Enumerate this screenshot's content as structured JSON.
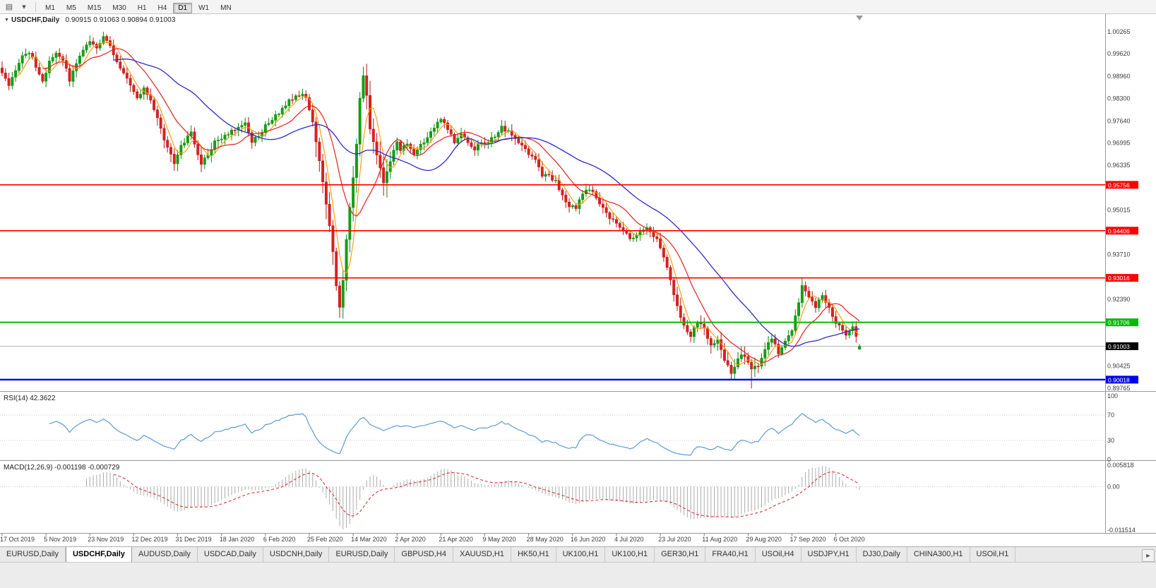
{
  "toolbar": {
    "timeframes": [
      "M1",
      "M5",
      "M15",
      "M30",
      "H1",
      "H4",
      "D1",
      "W1",
      "MN"
    ],
    "active_timeframe": "D1",
    "icons": {
      "chart_windows": "▤",
      "dropdown": "▾"
    }
  },
  "chart": {
    "title": "USDCHF,Daily",
    "ohlc_text": "0.90915 0.91063 0.90894 0.91003",
    "collapse_icon": "▼"
  },
  "chart_data": {
    "type": "candlestick",
    "symbol": "USDCHF",
    "timeframe": "Daily",
    "current_bar": {
      "open": 0.90915,
      "high": 0.91063,
      "low": 0.90894,
      "close": 0.91003
    },
    "current_price_label": "0.91003",
    "price_axis": {
      "min": 0.89765,
      "max": 1.00265,
      "labels": [
        "1.00265",
        "0.99620",
        "0.98960",
        "0.98300",
        "0.97640",
        "0.96995",
        "0.96335",
        "0.95015",
        "0.93710",
        "0.92390",
        "0.90425",
        "0.89765"
      ]
    },
    "hlines": [
      {
        "value": 0.95756,
        "label": "0.95756",
        "color": "#ff0000",
        "width": 1.6
      },
      {
        "value": 0.94406,
        "label": "0.94406",
        "color": "#ff0000",
        "width": 1.6
      },
      {
        "value": 0.93016,
        "label": "0.93016",
        "color": "#ff0000",
        "width": 1.6
      },
      {
        "value": 0.91706,
        "label": "0.91706",
        "color": "#00bb00",
        "width": 2
      },
      {
        "value": 0.90018,
        "label": "0.90018",
        "color": "#0000ee",
        "width": 2.4
      }
    ],
    "x_labels": [
      "17 Oct 2019",
      "5 Nov 2019",
      "23 Nov 2019",
      "12 Dec 2019",
      "31 Dec 2019",
      "18 Jan 2020",
      "6 Feb 2020",
      "25 Feb 2020",
      "14 Mar 2020",
      "2 Apr 2020",
      "21 Apr 2020",
      "9 May 2020",
      "28 May 2020",
      "16 Jun 2020",
      "4 Jul 2020",
      "23 Jul 2020",
      "11 Aug 2020",
      "29 Aug 2020",
      "17 Sep 2020",
      "6 Oct 2020"
    ],
    "candles_per_label": 13,
    "total_candles": 255,
    "close_anchors": [
      [
        0,
        0.99
      ],
      [
        2,
        0.9868
      ],
      [
        4,
        0.9915
      ],
      [
        6,
        0.9952
      ],
      [
        8,
        0.9968
      ],
      [
        10,
        0.9925
      ],
      [
        12,
        0.9878
      ],
      [
        14,
        0.9942
      ],
      [
        16,
        0.9968
      ],
      [
        18,
        0.9945
      ],
      [
        20,
        0.9882
      ],
      [
        22,
        0.9932
      ],
      [
        24,
        0.9975
      ],
      [
        26,
        1.0
      ],
      [
        28,
        0.9978
      ],
      [
        30,
        1.0008
      ],
      [
        32,
        0.9985
      ],
      [
        34,
        0.9942
      ],
      [
        36,
        0.9905
      ],
      [
        38,
        0.9868
      ],
      [
        40,
        0.9832
      ],
      [
        42,
        0.9858
      ],
      [
        44,
        0.9828
      ],
      [
        46,
        0.9768
      ],
      [
        48,
        0.9708
      ],
      [
        50,
        0.9662
      ],
      [
        51,
        0.9635
      ],
      [
        53,
        0.9692
      ],
      [
        56,
        0.9728
      ],
      [
        59,
        0.9633
      ],
      [
        61,
        0.9668
      ],
      [
        63,
        0.97
      ],
      [
        66,
        0.9718
      ],
      [
        69,
        0.9742
      ],
      [
        72,
        0.9758
      ],
      [
        74,
        0.9705
      ],
      [
        76,
        0.9722
      ],
      [
        78,
        0.9748
      ],
      [
        81,
        0.9778
      ],
      [
        84,
        0.9812
      ],
      [
        87,
        0.984
      ],
      [
        90,
        0.9838
      ],
      [
        92,
        0.976
      ],
      [
        94,
        0.965
      ],
      [
        96,
        0.952
      ],
      [
        98,
        0.938
      ],
      [
        99,
        0.928
      ],
      [
        100,
        0.921
      ],
      [
        101,
        0.929
      ],
      [
        102,
        0.942
      ],
      [
        104,
        0.96
      ],
      [
        105,
        0.97
      ],
      [
        106,
        0.983
      ],
      [
        107,
        0.9895
      ],
      [
        108,
        0.9835
      ],
      [
        109,
        0.9745
      ],
      [
        111,
        0.966
      ],
      [
        113,
        0.9585
      ],
      [
        115,
        0.9645
      ],
      [
        117,
        0.9705
      ],
      [
        118,
        0.9672
      ],
      [
        120,
        0.97
      ],
      [
        122,
        0.9668
      ],
      [
        124,
        0.969
      ],
      [
        126,
        0.972
      ],
      [
        128,
        0.9745
      ],
      [
        130,
        0.9768
      ],
      [
        132,
        0.9738
      ],
      [
        134,
        0.97
      ],
      [
        136,
        0.9725
      ],
      [
        138,
        0.97
      ],
      [
        140,
        0.9682
      ],
      [
        142,
        0.9705
      ],
      [
        144,
        0.9702
      ],
      [
        146,
        0.9722
      ],
      [
        148,
        0.9745
      ],
      [
        150,
        0.973
      ],
      [
        152,
        0.9708
      ],
      [
        154,
        0.9688
      ],
      [
        156,
        0.9665
      ],
      [
        158,
        0.9648
      ],
      [
        160,
        0.9605
      ],
      [
        162,
        0.96
      ],
      [
        164,
        0.9588
      ],
      [
        166,
        0.9542
      ],
      [
        168,
        0.9515
      ],
      [
        170,
        0.9505
      ],
      [
        172,
        0.9548
      ],
      [
        174,
        0.9562
      ],
      [
        176,
        0.954
      ],
      [
        178,
        0.9508
      ],
      [
        180,
        0.9478
      ],
      [
        182,
        0.946
      ],
      [
        184,
        0.944
      ],
      [
        186,
        0.9418
      ],
      [
        188,
        0.9428
      ],
      [
        190,
        0.9448
      ],
      [
        192,
        0.944
      ],
      [
        194,
        0.9412
      ],
      [
        196,
        0.9365
      ],
      [
        198,
        0.9295
      ],
      [
        200,
        0.9215
      ],
      [
        202,
        0.916
      ],
      [
        204,
        0.913
      ],
      [
        206,
        0.9175
      ],
      [
        208,
        0.915
      ],
      [
        210,
        0.9105
      ],
      [
        212,
        0.9118
      ],
      [
        214,
        0.906
      ],
      [
        216,
        0.902
      ],
      [
        218,
        0.9068
      ],
      [
        220,
        0.9075
      ],
      [
        222,
        0.903
      ],
      [
        224,
        0.9045
      ],
      [
        226,
        0.909
      ],
      [
        228,
        0.9125
      ],
      [
        230,
        0.908
      ],
      [
        232,
        0.911
      ],
      [
        234,
        0.915
      ],
      [
        236,
        0.923
      ],
      [
        237,
        0.928
      ],
      [
        239,
        0.924
      ],
      [
        241,
        0.9218
      ],
      [
        243,
        0.9248
      ],
      [
        245,
        0.921
      ],
      [
        247,
        0.9172
      ],
      [
        248,
        0.916
      ],
      [
        250,
        0.913
      ],
      [
        252,
        0.9158
      ],
      [
        254,
        0.91003
      ]
    ],
    "wick_spikes": [
      {
        "i": 30,
        "h": 1.00265
      },
      {
        "i": 51,
        "l": 0.9617
      },
      {
        "i": 59,
        "l": 0.9613
      },
      {
        "i": 100,
        "l": 0.9184
      },
      {
        "i": 107,
        "h": 0.992
      },
      {
        "i": 113,
        "l": 0.956
      },
      {
        "i": 222,
        "l": 0.8976
      },
      {
        "i": 237,
        "h": 0.9301
      }
    ],
    "ma_periods": {
      "fast": 5,
      "mid": 13,
      "slow": 34
    },
    "colors": {
      "bull": "#0fa30f",
      "bull_stroke": "#0b880b",
      "bear": "#dd2020",
      "bear_stroke": "#b51515",
      "ma_fast": "#ff9900",
      "ma_mid": "#e02020",
      "ma_slow": "#2d2dc9",
      "rsi": "#5b9bd5",
      "macd_hist": "#ababab",
      "macd_signal": "#d43333",
      "current_price_line": "#b8b8b8",
      "current_price_box": "#000000"
    },
    "indicators": {
      "rsi": {
        "label": "RSI(14) 42.3622",
        "period": 14,
        "value": "42.3622",
        "levels": [
          "100",
          "70",
          "30",
          "0"
        ]
      },
      "macd": {
        "label": "MACD(12,26,9) -0.001198 -0.000729",
        "fast": 12,
        "slow": 26,
        "signal": 9,
        "value_main": "-0.001198",
        "value_signal": "-0.000729",
        "scale_labels": [
          "0.005818",
          "0.00",
          "-0.011514"
        ]
      }
    }
  },
  "tabs": {
    "items": [
      "EURUSD,Daily",
      "USDCHF,Daily",
      "AUDUSD,Daily",
      "USDCAD,Daily",
      "USDCNH,Daily",
      "EURUSD,Daily",
      "GBPUSD,H4",
      "XAUUSD,H1",
      "HK50,H1",
      "UK100,H1",
      "UK100,H1",
      "GER30,H1",
      "FRA40,H1",
      "USOil,H4",
      "USDJPY,H1",
      "DJ30,Daily",
      "CHINA300,H1",
      "USOil,H1"
    ],
    "active_index": 1,
    "scroll_right_icon": "►"
  }
}
